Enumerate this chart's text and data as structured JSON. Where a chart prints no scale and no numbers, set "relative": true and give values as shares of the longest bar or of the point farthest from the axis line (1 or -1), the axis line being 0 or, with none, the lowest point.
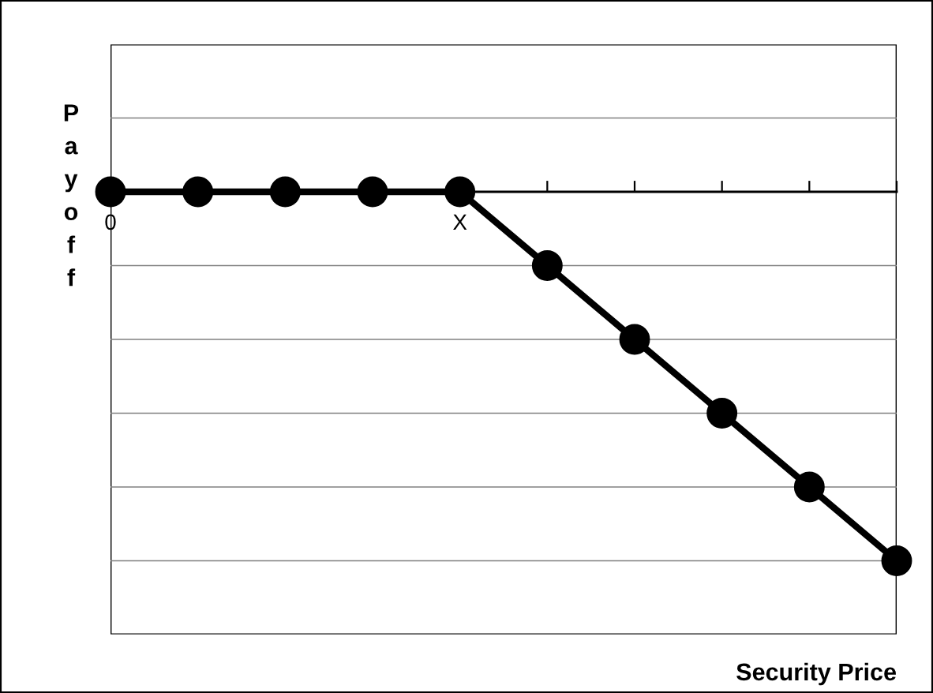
{
  "chart_data": {
    "type": "line",
    "relative": true,
    "xlabel": "Security Price",
    "ylabel": "Payoff",
    "categories": [
      "0",
      null,
      null,
      null,
      "X",
      null,
      null,
      null,
      null,
      null
    ],
    "series": [
      {
        "color": "#000000",
        "values": [
          0,
          0,
          0,
          0,
          0,
          -0.2,
          -0.4,
          -0.6,
          -0.8,
          -1
        ]
      }
    ],
    "marker": "circle",
    "line_style": "solid",
    "grid": "y"
  }
}
